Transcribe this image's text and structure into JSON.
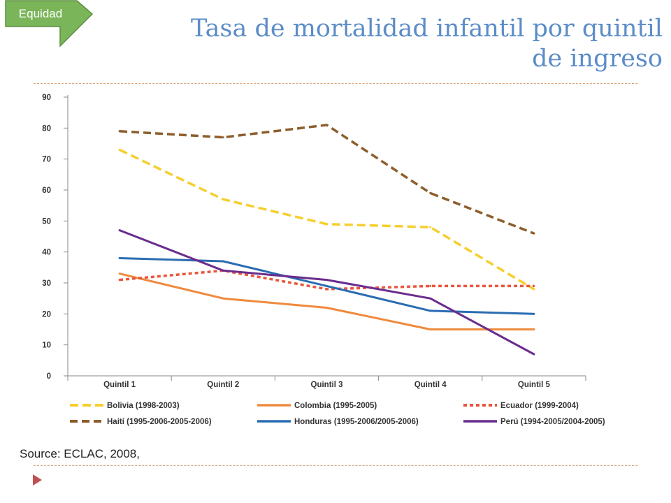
{
  "tag": {
    "label": "Equidad",
    "fill": "#7bb55a",
    "stroke": "#5c8d3d"
  },
  "header": {
    "title_line1": "Tasa de mortalidad infantil por quintil",
    "title_line2": "de ingreso",
    "color": "#5b8cc8"
  },
  "footer": {
    "source": "Source: ECLAC, 2008,"
  },
  "colors": {
    "separator": "#d6a57e",
    "bullet": "#c0504d",
    "axis": "#8a8a8a",
    "chart_text": "#333333"
  },
  "chart_data": {
    "type": "line",
    "title": "",
    "xlabel": "",
    "ylabel": "",
    "categories": [
      "Quintil 1",
      "Quintil 2",
      "Quintil 3",
      "Quintil 4",
      "Quintil 5"
    ],
    "ylim": [
      0,
      90
    ],
    "yticks": [
      0,
      10,
      20,
      30,
      40,
      50,
      60,
      70,
      80,
      90
    ],
    "grid": false,
    "legend_position": "bottom",
    "series": [
      {
        "name": "Bolivia (1998-2003)",
        "color": "#f6cf2f",
        "values": [
          73,
          57,
          49,
          48,
          28
        ]
      },
      {
        "name": "Colombia (1995-2005)",
        "color": "#ef8a3d",
        "values": [
          33,
          25,
          22,
          15,
          15
        ]
      },
      {
        "name": "Ecuador (1999-2004)",
        "color": "#e8563d",
        "values": [
          31,
          34,
          28,
          29,
          29
        ]
      },
      {
        "name": "Haití (1995-2006-2005-2006)",
        "color": "#8d5e2c",
        "values": [
          79,
          77,
          81,
          59,
          46
        ]
      },
      {
        "name": "Honduras (1995-2006/2005-2006)",
        "color": "#2b6cb2",
        "values": [
          38,
          37,
          29,
          21,
          20
        ]
      },
      {
        "name": "Perú (1994-2005/2004-2005)",
        "color": "#6a2c8e",
        "values": [
          47,
          34,
          31,
          25,
          7
        ]
      }
    ]
  }
}
